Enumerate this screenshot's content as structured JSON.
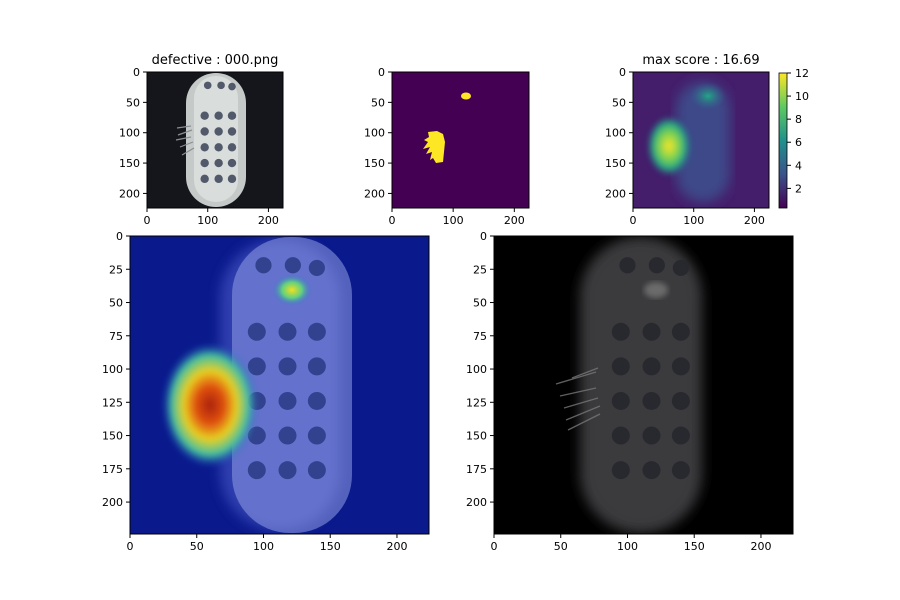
{
  "titles": {
    "original": "defective : 000.png",
    "mask": "",
    "score": "max score : 16.69"
  },
  "chart_data": [
    {
      "type": "heatmap",
      "panel": "original",
      "title": "defective : 000.png",
      "xlim": [
        0,
        224
      ],
      "ylim": [
        224,
        0
      ],
      "xticks": [
        0,
        100,
        200
      ],
      "yticks": [
        0,
        50,
        100,
        150,
        200
      ]
    },
    {
      "type": "heatmap",
      "panel": "mask",
      "title": "",
      "xlim": [
        0,
        224
      ],
      "ylim": [
        224,
        0
      ],
      "xticks": [
        0,
        100,
        200
      ],
      "yticks": [
        0,
        50,
        100,
        150,
        200
      ],
      "colors": {
        "background": "#440154",
        "defect": "#fde725"
      }
    },
    {
      "type": "heatmap",
      "panel": "score",
      "title": "max score : 16.69",
      "xlim": [
        0,
        224
      ],
      "ylim": [
        224,
        0
      ],
      "xticks": [
        0,
        100,
        200
      ],
      "yticks": [
        0,
        50,
        100,
        150,
        200
      ],
      "colorbar": {
        "ticks": [
          2,
          4,
          6,
          8,
          10,
          12
        ],
        "range": [
          0.3,
          12
        ],
        "cmap": "viridis"
      }
    },
    {
      "type": "heatmap",
      "panel": "overlay",
      "title": "",
      "xlim": [
        0,
        224
      ],
      "ylim": [
        224,
        0
      ],
      "xticks": [
        0,
        50,
        100,
        150,
        200
      ],
      "yticks": [
        0,
        25,
        50,
        75,
        100,
        125,
        150,
        175,
        200
      ],
      "cmap": "jet"
    },
    {
      "type": "heatmap",
      "panel": "masked",
      "title": "",
      "xlim": [
        0,
        224
      ],
      "ylim": [
        224,
        0
      ],
      "xticks": [
        0,
        50,
        100,
        150,
        200
      ],
      "yticks": [
        0,
        25,
        50,
        75,
        100,
        125,
        150,
        175,
        200
      ]
    }
  ]
}
